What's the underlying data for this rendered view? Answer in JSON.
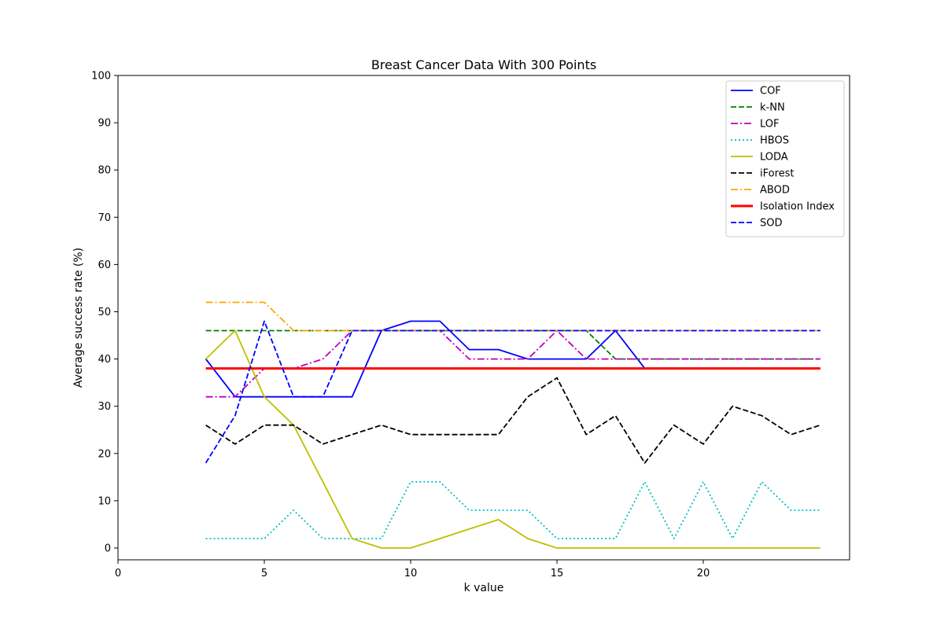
{
  "chart_data": {
    "type": "line",
    "title": "Breast Cancer Data With 300 Points",
    "xlabel": "k value",
    "ylabel": "Average success rate (%)",
    "xlim": [
      0,
      25
    ],
    "ylim": [
      -2.5,
      100
    ],
    "xticks": [
      0,
      5,
      10,
      15,
      20
    ],
    "yticks": [
      0,
      10,
      20,
      30,
      40,
      50,
      60,
      70,
      80,
      90,
      100
    ],
    "grid": false,
    "legend_position": "top-right",
    "x": [
      3,
      4,
      5,
      6,
      7,
      8,
      9,
      10,
      11,
      12,
      13,
      14,
      15,
      16,
      17,
      18,
      19,
      20,
      21,
      22,
      23,
      24
    ],
    "series": [
      {
        "name": "COF",
        "color": "#0000ff",
        "dash": "solid",
        "width": 1.8,
        "values": [
          40,
          32,
          32,
          32,
          32,
          32,
          46,
          48,
          48,
          42,
          42,
          40,
          40,
          40,
          46,
          38,
          38,
          38,
          38,
          38,
          38,
          38
        ]
      },
      {
        "name": "k-NN",
        "color": "#008000",
        "dash": "dashed",
        "width": 1.8,
        "values": [
          46,
          46,
          46,
          46,
          46,
          46,
          46,
          46,
          46,
          46,
          46,
          46,
          46,
          46,
          40,
          40,
          40,
          40,
          40,
          40,
          40,
          40
        ]
      },
      {
        "name": "LOF",
        "color": "#bf00bf",
        "dash": "dashdot",
        "width": 1.8,
        "values": [
          32,
          32,
          38,
          38,
          40,
          46,
          46,
          46,
          46,
          40,
          40,
          40,
          46,
          40,
          40,
          40,
          40,
          40,
          40,
          40,
          40,
          40
        ]
      },
      {
        "name": "HBOS",
        "color": "#00bfbf",
        "dash": "dotted",
        "width": 1.8,
        "values": [
          2,
          2,
          2,
          8,
          2,
          2,
          2,
          14,
          14,
          8,
          8,
          8,
          2,
          2,
          2,
          14,
          2,
          14,
          2,
          14,
          8,
          8
        ]
      },
      {
        "name": "LODA",
        "color": "#bfbf00",
        "dash": "solid",
        "width": 1.8,
        "values": [
          40,
          46,
          32,
          26,
          14,
          2,
          0,
          0,
          2,
          4,
          6,
          2,
          0,
          0,
          0,
          0,
          0,
          0,
          0,
          0,
          0,
          0
        ]
      },
      {
        "name": "iForest",
        "color": "#000000",
        "dash": "dashed",
        "width": 1.8,
        "values": [
          26,
          22,
          26,
          26,
          22,
          24,
          26,
          24,
          24,
          24,
          24,
          32,
          36,
          24,
          28,
          18,
          26,
          22,
          30,
          28,
          24,
          26
        ]
      },
      {
        "name": "ABOD",
        "color": "#ffa500",
        "dash": "dashdot",
        "width": 1.8,
        "values": [
          52,
          52,
          52,
          46,
          46,
          46,
          46,
          46,
          46,
          46,
          46,
          46,
          46,
          46,
          46,
          46,
          46,
          46,
          46,
          46,
          46,
          46
        ]
      },
      {
        "name": "Isolation Index",
        "color": "#ff0000",
        "dash": "solid",
        "width": 3,
        "values": [
          38,
          38,
          38,
          38,
          38,
          38,
          38,
          38,
          38,
          38,
          38,
          38,
          38,
          38,
          38,
          38,
          38,
          38,
          38,
          38,
          38,
          38
        ]
      },
      {
        "name": "SOD",
        "color": "#0000ff",
        "dash": "dashed",
        "width": 1.8,
        "values": [
          18,
          28,
          48,
          32,
          32,
          46,
          46,
          46,
          46,
          46,
          46,
          46,
          46,
          46,
          46,
          46,
          46,
          46,
          46,
          46,
          46,
          46
        ]
      }
    ]
  }
}
